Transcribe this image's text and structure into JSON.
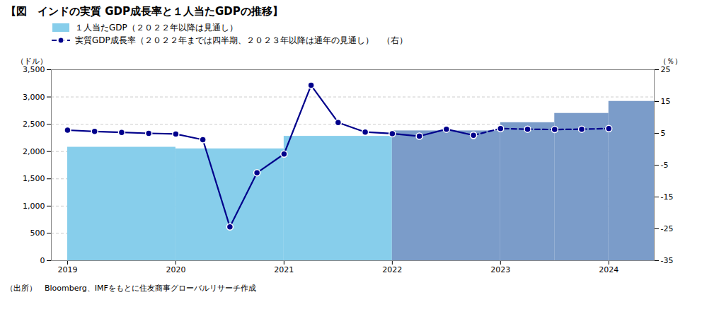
{
  "chart_data": {
    "type": "bar",
    "title": "【図　インドの実質 GDP成長率と１人当たGDPの推移】",
    "source": "（出所）　Bloomberg、IMFをもとに住友商事グローバルリサーチ作成",
    "ylabel": "（ドル）",
    "y2label": "（％）",
    "xlim": [
      2018.85,
      2024.42
    ],
    "xticks": [
      2019,
      2020,
      2021,
      2022,
      2023,
      2024
    ],
    "ylim": [
      0,
      3500
    ],
    "yticks": [
      0,
      500,
      {
        "value": 1000,
        "label": "1,000"
      },
      {
        "value": 1500,
        "label": "1,500"
      },
      {
        "value": 2000,
        "label": "2,000"
      },
      {
        "value": 2500,
        "label": "2,500"
      },
      {
        "value": 3000,
        "label": "3,000"
      },
      {
        "value": 3500,
        "label": "3,500"
      }
    ],
    "y2lim": [
      -35,
      25
    ],
    "y2ticks": [
      -35,
      -25,
      -15,
      -5,
      5,
      15,
      25
    ],
    "grid": true,
    "legend": "upper left",
    "series": [
      {
        "name": "１人当たGDP（２０２２年以降は見通し）",
        "type": "bar",
        "colors": [
          "#87CEEB",
          "#87CEEB",
          "#87CEEB",
          "#7B9CC9",
          "#7B9CC9",
          "#7B9CC9",
          "#7B9CC9"
        ],
        "x": [
          2019.0,
          2020.0,
          2021.0,
          2022.0,
          2023.0,
          2023.5,
          2024.0
        ],
        "widths": [
          1.0,
          1.0,
          1.0,
          1.0,
          0.5,
          0.5,
          0.42
        ],
        "values": [
          2080,
          2050,
          2280,
          2380,
          2530,
          2700,
          2920
        ]
      },
      {
        "type": "line",
        "axis": "y2",
        "color": "#00008B",
        "marker": "circle",
        "line_style": "solid",
        "x": [
          2019.0,
          2019.25,
          2019.5,
          2019.75,
          2020.0,
          2020.25,
          2020.5,
          2020.75,
          2021.0,
          2021.25,
          2021.5,
          2021.75,
          2022.0,
          2022.25,
          2022.5,
          2022.75
        ],
        "values": [
          6.0,
          5.6,
          5.3,
          5.0,
          4.8,
          3.0,
          -24.4,
          -7.4,
          -1.5,
          20.1,
          8.4,
          5.4,
          4.9,
          4.1,
          6.3,
          4.4
        ]
      },
      {
        "name": "実質GDP成長率（２０２２年までは四半期、２０２３年以降は通年の見通し）　（右）",
        "type": "line",
        "axis": "y2",
        "color": "#00008B",
        "marker": "circle",
        "line_style": "dashed",
        "x": [
          2022.75,
          2023.0,
          2023.25,
          2023.5,
          2023.75,
          2024.0
        ],
        "values": [
          4.4,
          6.5,
          6.3,
          6.2,
          6.3,
          6.5
        ]
      }
    ]
  }
}
